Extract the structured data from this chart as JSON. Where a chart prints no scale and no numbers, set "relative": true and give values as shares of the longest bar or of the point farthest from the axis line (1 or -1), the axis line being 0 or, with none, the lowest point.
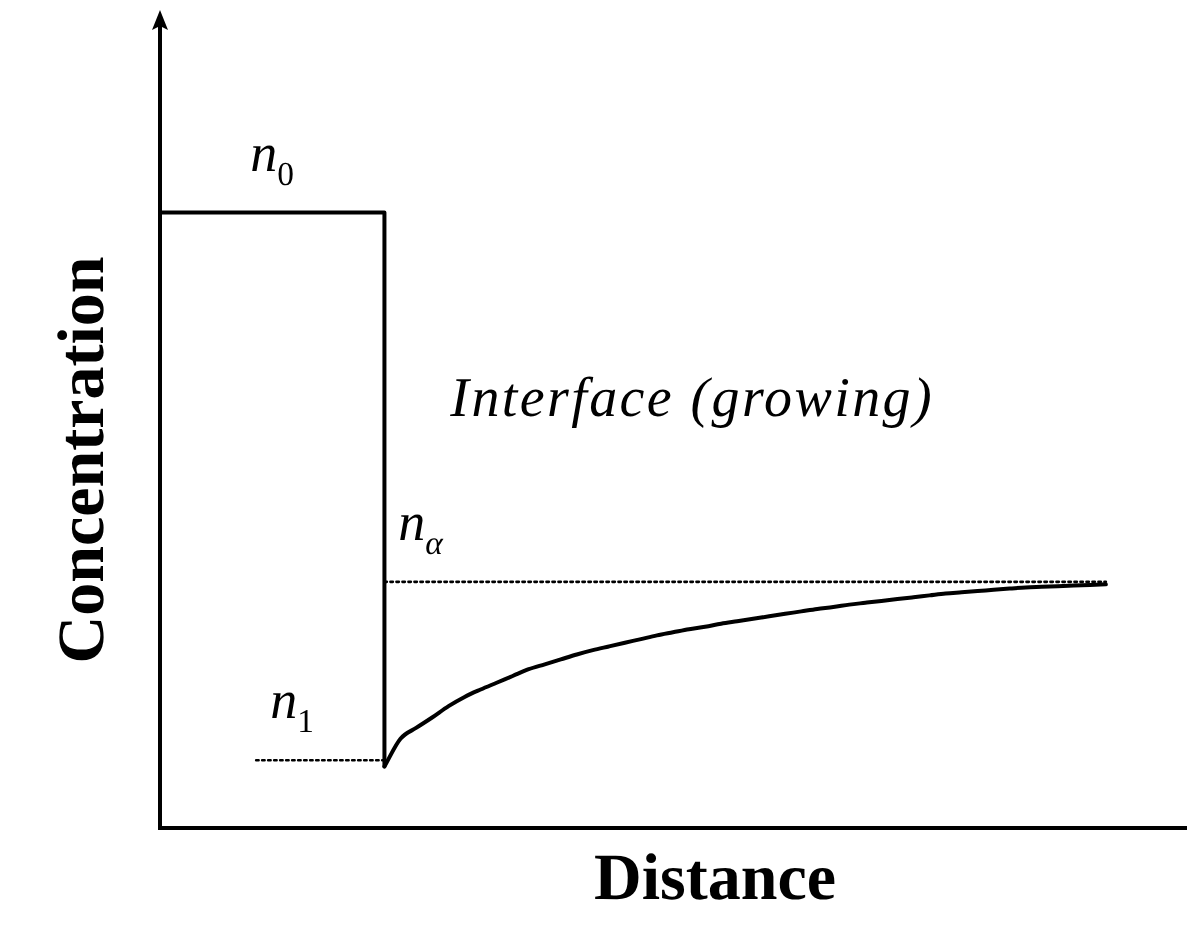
{
  "chart_data": {
    "type": "line",
    "xlabel": "Distance",
    "ylabel": "Concentration",
    "relative": true,
    "marker": "none",
    "categories": [
      null,
      null,
      null,
      null,
      null,
      null,
      null,
      null,
      null,
      null,
      null,
      null,
      null,
      null,
      null,
      null,
      null,
      null,
      null,
      null,
      null,
      null,
      null,
      null,
      null,
      null,
      null,
      null,
      null,
      null,
      null,
      null,
      null,
      null,
      null,
      null,
      null,
      null,
      null,
      null,
      null,
      null,
      null,
      null,
      null,
      null,
      null,
      null,
      null,
      null,
      null,
      null,
      null,
      null,
      null,
      null,
      null,
      null,
      null,
      null,
      null,
      null,
      null,
      null,
      null
    ],
    "series": [
      {
        "name": "n$_{0}$",
        "type": "step",
        "color": "#000000",
        "values": [
          1,
          1,
          1,
          1,
          1,
          1,
          1,
          1,
          1,
          1,
          1,
          1,
          1,
          1,
          0.1,
          null,
          null,
          null,
          null,
          null,
          null,
          null,
          null,
          null,
          null,
          null,
          null,
          null,
          null,
          null,
          null,
          null,
          null,
          null,
          null,
          null,
          null,
          null,
          null,
          null,
          null,
          null,
          null,
          null,
          null,
          null,
          null,
          null,
          null,
          null,
          null,
          null,
          null,
          null,
          null,
          null,
          null,
          null,
          null,
          null,
          null,
          null,
          null,
          null,
          null
        ]
      },
      {
        "type": "line",
        "color": "#000000",
        "values": [
          null,
          null,
          null,
          null,
          null,
          null,
          null,
          null,
          null,
          null,
          null,
          null,
          null,
          null,
          0.1,
          0.145,
          0.163,
          0.18,
          0.198,
          0.213,
          0.225,
          0.236,
          0.247,
          0.258,
          0.266,
          0.274,
          0.282,
          0.289,
          0.295,
          0.301,
          0.307,
          0.313,
          0.318,
          0.323,
          0.327,
          0.332,
          0.336,
          0.34,
          0.344,
          0.348,
          0.352,
          0.356,
          0.359,
          0.363,
          0.366,
          0.369,
          0.372,
          0.375,
          0.378,
          0.381,
          0.383,
          0.385,
          0.387,
          0.389,
          0.391,
          0.392,
          0.393,
          0.394,
          0.395,
          0.396,
          null,
          null,
          null,
          null,
          null
        ]
      },
      {
        "name": "n$_{1}$",
        "type": "line",
        "line_style": "dotted",
        "color": "#000000",
        "values": [
          null,
          null,
          null,
          null,
          null,
          null,
          0.11,
          0.11,
          0.11,
          0.11,
          0.11,
          0.11,
          0.11,
          0.11,
          0.11,
          null,
          null,
          null,
          null,
          null,
          null,
          null,
          null,
          null,
          null,
          null,
          null,
          null,
          null,
          null,
          null,
          null,
          null,
          null,
          null,
          null,
          null,
          null,
          null,
          null,
          null,
          null,
          null,
          null,
          null,
          null,
          null,
          null,
          null,
          null,
          null,
          null,
          null,
          null,
          null,
          null,
          null,
          null,
          null,
          null,
          null,
          null,
          null,
          null,
          null
        ]
      },
      {
        "name": "n$_{α}$",
        "type": "line",
        "line_style": "dotted",
        "color": "#000000",
        "values": [
          null,
          null,
          null,
          null,
          null,
          null,
          null,
          null,
          null,
          null,
          null,
          null,
          null,
          null,
          0.4,
          0.4,
          0.4,
          0.4,
          0.4,
          0.4,
          0.4,
          0.4,
          0.4,
          0.4,
          0.4,
          0.4,
          0.4,
          0.4,
          0.4,
          0.4,
          0.4,
          0.4,
          0.4,
          0.4,
          0.4,
          0.4,
          0.4,
          0.4,
          0.4,
          0.4,
          0.4,
          0.4,
          0.4,
          0.4,
          0.4,
          0.4,
          0.4,
          0.4,
          0.4,
          0.4,
          0.4,
          0.4,
          0.4,
          0.4,
          0.4,
          0.4,
          0.4,
          0.4,
          0.4,
          0.4,
          null,
          null,
          null,
          null,
          null
        ]
      }
    ],
    "annotations": [
      "Interface (growing)"
    ]
  }
}
